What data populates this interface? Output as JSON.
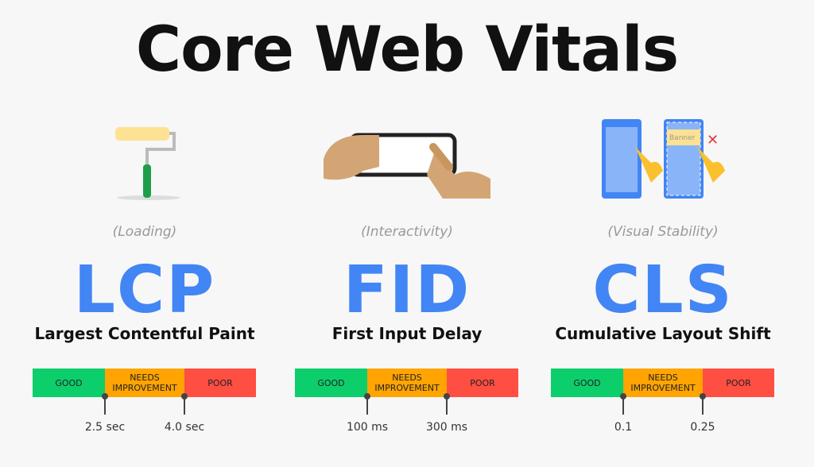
{
  "title": "Core Web Vitals",
  "bar_labels": {
    "good": "GOOD",
    "needs": "NEEDS IMPROVEMENT",
    "poor": "POOR"
  },
  "colors": {
    "good": "#0cce6b",
    "needs": "#ffa400",
    "poor": "#ff4e42",
    "accent": "#4285f4"
  },
  "metrics": [
    {
      "icon": "paint-roller-icon",
      "category": "(Loading)",
      "abbr": "LCP",
      "name": "Largest Contentful Paint",
      "thresholds": [
        "2.5 sec",
        "4.0 sec"
      ]
    },
    {
      "icon": "hands-phone-tap-icon",
      "category": "(Interactivity)",
      "abbr": "FID",
      "name": "First Input Delay",
      "thresholds": [
        "100 ms",
        "300 ms"
      ]
    },
    {
      "icon": "layout-shift-phones-icon",
      "category": "(Visual Stability)",
      "abbr": "CLS",
      "name": "Cumulative Layout Shift",
      "thresholds": [
        "0.1",
        "0.25"
      ],
      "banner": "Banner"
    }
  ]
}
